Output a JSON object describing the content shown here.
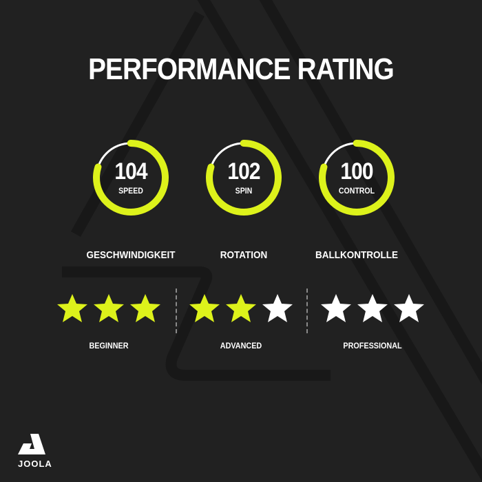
{
  "title": "PERFORMANCE RATING",
  "colors": {
    "accent": "#DDF21B",
    "background": "#212121",
    "text": "#FFFFFF",
    "empty_star": "#FFFFFF"
  },
  "metrics": [
    {
      "value": "104",
      "label": "SPEED",
      "category": "GESCHWINDIGKEIT",
      "ring_fill": 0.8
    },
    {
      "value": "102",
      "label": "SPIN",
      "category": "ROTATION",
      "ring_fill": 0.8
    },
    {
      "value": "100",
      "label": "CONTROL",
      "category": "BALLKONTROLLE",
      "ring_fill": 0.8
    }
  ],
  "levels": [
    {
      "label": "BEGINNER",
      "stars_filled": 3,
      "stars_total": 3
    },
    {
      "label": "ADVANCED",
      "stars_filled": 2,
      "stars_total": 3
    },
    {
      "label": "PROFESSIONAL",
      "stars_filled": 0,
      "stars_total": 3
    }
  ],
  "logo": {
    "text": "JOOLA"
  }
}
